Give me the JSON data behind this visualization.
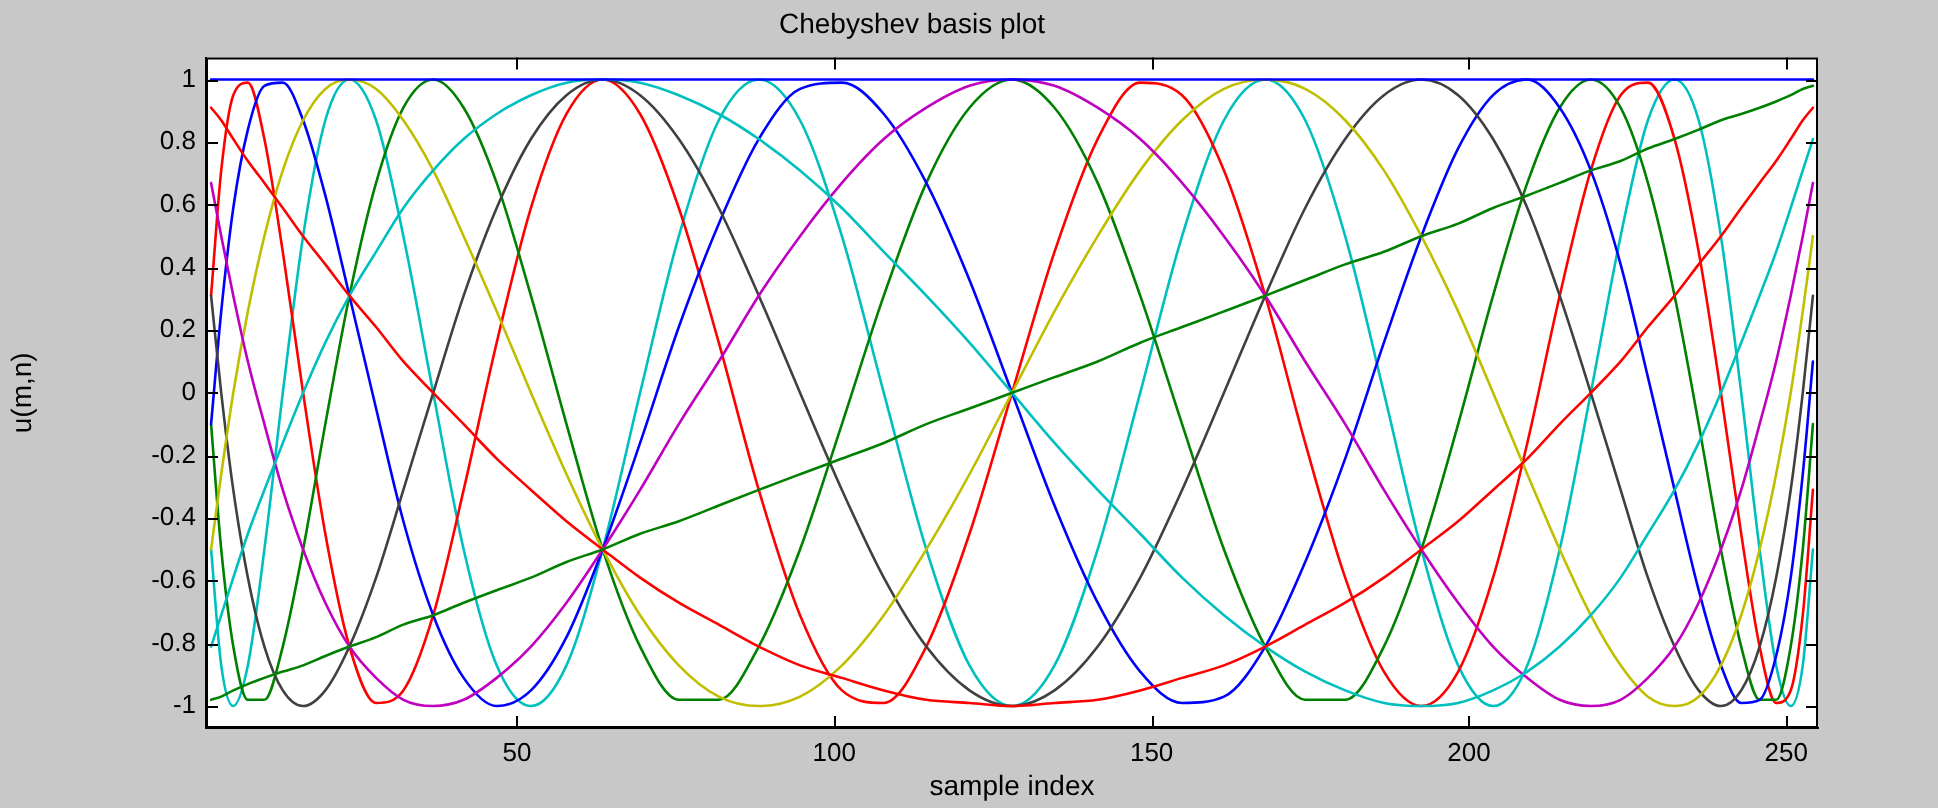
{
  "chart_data": {
    "type": "line",
    "title": "Chebyshev basis plot",
    "xlabel": "sample index",
    "ylabel": "u(m,n)",
    "xlim": [
      1,
      255
    ],
    "xticks": [
      50,
      100,
      150,
      200,
      250
    ],
    "ylim": [
      -1.07,
      1.07
    ],
    "yticks": [
      -1,
      -0.8,
      -0.6,
      -0.4,
      -0.2,
      0,
      0.2,
      0.4,
      0.6,
      0.8,
      1
    ],
    "grid": false,
    "legend": false,
    "marker": "none",
    "line_style": "solid",
    "x": [
      1.8,
      3.4,
      5.3,
      7.6,
      10.2,
      13.1,
      16.3,
      19.8,
      23.6,
      27.8,
      32.1,
      36.8,
      41.6,
      46.8,
      52.2,
      57.8,
      63.5,
      69.4,
      75.5,
      81.8,
      88.1,
      94.6,
      101.2,
      107.8,
      114.5,
      121.3,
      128,
      134.7,
      141.5,
      148.2,
      154.8,
      161.4,
      167.9,
      174.2,
      180.5,
      186.6,
      192.5,
      198.3,
      203.8,
      209.2,
      214.3,
      219.2,
      223.9,
      228.2,
      232.4,
      236.2,
      239.7,
      242.9,
      245.8,
      248.4,
      250.7,
      252.6,
      254.2
    ],
    "series": [
      {
        "color": "#0000ff",
        "values": [
          1,
          1,
          1,
          1,
          1,
          1,
          1,
          1,
          1,
          1,
          1,
          1,
          1,
          1,
          1,
          1,
          1,
          1,
          1,
          1,
          1,
          1,
          1,
          1,
          1,
          1,
          1,
          1,
          1,
          1,
          1,
          1,
          1,
          1,
          1,
          1,
          1,
          1,
          1,
          1,
          1,
          1,
          1,
          1,
          1,
          1,
          1,
          1,
          1,
          1,
          1,
          1,
          1
        ]
      },
      {
        "color": "#008000",
        "values": [
          -0.98,
          -0.97,
          -0.95,
          -0.93,
          -0.91,
          -0.89,
          -0.87,
          -0.84,
          -0.81,
          -0.78,
          -0.74,
          -0.71,
          -0.67,
          -0.63,
          -0.59,
          -0.54,
          -0.5,
          -0.45,
          -0.41,
          -0.36,
          -0.31,
          -0.26,
          -0.21,
          -0.16,
          -0.1,
          -0.05,
          0,
          0.05,
          0.1,
          0.16,
          0.21,
          0.26,
          0.31,
          0.36,
          0.41,
          0.45,
          0.5,
          0.54,
          0.59,
          0.63,
          0.67,
          0.71,
          0.74,
          0.78,
          0.81,
          0.84,
          0.87,
          0.89,
          0.91,
          0.93,
          0.95,
          0.97,
          0.98
        ]
      },
      {
        "color": "#ff0000",
        "values": [
          0.91,
          0.87,
          0.81,
          0.74,
          0.67,
          0.59,
          0.5,
          0.41,
          0.31,
          0.21,
          0.1,
          0,
          -0.1,
          -0.21,
          -0.31,
          -0.41,
          -0.5,
          -0.59,
          -0.67,
          -0.74,
          -0.81,
          -0.87,
          -0.91,
          -0.95,
          -0.98,
          -0.99,
          -1,
          -0.99,
          -0.98,
          -0.95,
          -0.91,
          -0.87,
          -0.81,
          -0.74,
          -0.67,
          -0.59,
          -0.5,
          -0.41,
          -0.31,
          -0.21,
          -0.1,
          0,
          0.1,
          0.21,
          0.31,
          0.41,
          0.5,
          0.59,
          0.67,
          0.74,
          0.81,
          0.87,
          0.91
        ]
      },
      {
        "color": "#00bfbf",
        "values": [
          -0.81,
          -0.71,
          -0.59,
          -0.45,
          -0.31,
          -0.16,
          0,
          0.16,
          0.31,
          0.45,
          0.59,
          0.71,
          0.81,
          0.89,
          0.95,
          0.99,
          1,
          0.99,
          0.95,
          0.89,
          0.81,
          0.71,
          0.59,
          0.45,
          0.31,
          0.16,
          0,
          -0.16,
          -0.31,
          -0.45,
          -0.59,
          -0.71,
          -0.81,
          -0.89,
          -0.95,
          -0.99,
          -1,
          -0.99,
          -0.95,
          -0.89,
          -0.81,
          -0.71,
          -0.59,
          -0.45,
          -0.31,
          -0.16,
          0,
          0.16,
          0.31,
          0.45,
          0.59,
          0.71,
          0.81
        ]
      },
      {
        "color": "#bf00bf",
        "values": [
          0.67,
          0.5,
          0.31,
          0.1,
          -0.1,
          -0.31,
          -0.5,
          -0.67,
          -0.81,
          -0.91,
          -0.98,
          -1,
          -0.98,
          -0.91,
          -0.81,
          -0.67,
          -0.5,
          -0.31,
          -0.1,
          0.1,
          0.31,
          0.5,
          0.67,
          0.81,
          0.91,
          0.98,
          1,
          0.98,
          0.91,
          0.81,
          0.67,
          0.5,
          0.31,
          0.1,
          -0.1,
          -0.31,
          -0.5,
          -0.67,
          -0.81,
          -0.91,
          -0.98,
          -1,
          -0.98,
          -0.91,
          -0.81,
          -0.67,
          -0.5,
          -0.31,
          -0.1,
          0.1,
          0.31,
          0.5,
          0.67
        ]
      },
      {
        "color": "#bfbf00",
        "values": [
          -0.5,
          -0.26,
          0,
          0.26,
          0.5,
          0.71,
          0.87,
          0.97,
          1,
          0.97,
          0.87,
          0.71,
          0.5,
          0.26,
          0,
          -0.26,
          -0.5,
          -0.71,
          -0.87,
          -0.97,
          -1,
          -0.97,
          -0.87,
          -0.71,
          -0.5,
          -0.26,
          0,
          0.26,
          0.5,
          0.71,
          0.87,
          0.97,
          1,
          0.97,
          0.87,
          0.71,
          0.5,
          0.26,
          0,
          -0.26,
          -0.5,
          -0.71,
          -0.87,
          -0.97,
          -1,
          -0.97,
          -0.87,
          -0.71,
          -0.5,
          -0.26,
          0,
          0.26,
          0.5
        ]
      },
      {
        "color": "#404040",
        "values": [
          0.31,
          0,
          -0.31,
          -0.59,
          -0.81,
          -0.95,
          -1,
          -0.95,
          -0.81,
          -0.59,
          -0.31,
          0,
          0.31,
          0.59,
          0.81,
          0.95,
          1,
          0.95,
          0.81,
          0.59,
          0.31,
          0,
          -0.31,
          -0.59,
          -0.81,
          -0.95,
          -1,
          -0.95,
          -0.81,
          -0.59,
          -0.31,
          0,
          0.31,
          0.59,
          0.81,
          0.95,
          1,
          0.95,
          0.81,
          0.59,
          0.31,
          0,
          -0.31,
          -0.59,
          -0.81,
          -0.95,
          -1,
          -0.95,
          -0.81,
          -0.59,
          -0.31,
          0,
          0.31
        ]
      },
      {
        "color": "#0000ff",
        "values": [
          -0.1,
          0.26,
          0.59,
          0.84,
          0.98,
          0.99,
          0.87,
          0.63,
          0.31,
          -0.05,
          -0.41,
          -0.71,
          -0.91,
          -1,
          -0.95,
          -0.78,
          -0.5,
          -0.16,
          0.21,
          0.54,
          0.81,
          0.97,
          0.99,
          0.89,
          0.67,
          0.36,
          0,
          -0.36,
          -0.67,
          -0.89,
          -0.99,
          -0.97,
          -0.81,
          -0.54,
          -0.21,
          0.16,
          0.5,
          0.78,
          0.95,
          1,
          0.91,
          0.71,
          0.41,
          0.05,
          -0.31,
          -0.63,
          -0.87,
          -0.99,
          -0.98,
          -0.84,
          -0.59,
          -0.26,
          0.1
        ]
      },
      {
        "color": "#008000",
        "values": [
          -0.1,
          -0.5,
          -0.81,
          -0.98,
          -0.98,
          -0.81,
          -0.5,
          -0.1,
          0.31,
          0.67,
          0.91,
          1,
          0.91,
          0.67,
          0.31,
          -0.1,
          -0.5,
          -0.81,
          -0.98,
          -0.98,
          -0.81,
          -0.5,
          -0.1,
          0.31,
          0.67,
          0.91,
          1,
          0.91,
          0.67,
          0.31,
          -0.1,
          -0.5,
          -0.81,
          -0.98,
          -0.98,
          -0.81,
          -0.5,
          -0.1,
          0.31,
          0.67,
          0.91,
          1,
          0.91,
          0.67,
          0.31,
          -0.1,
          -0.5,
          -0.81,
          -0.98,
          -0.98,
          -0.81,
          -0.5,
          -0.1
        ]
      },
      {
        "color": "#ff0000",
        "values": [
          0.31,
          0.71,
          0.95,
          0.99,
          0.81,
          0.45,
          0,
          -0.45,
          -0.81,
          -0.99,
          -0.95,
          -0.71,
          -0.31,
          0.16,
          0.59,
          0.89,
          1,
          0.89,
          0.59,
          0.16,
          -0.31,
          -0.71,
          -0.95,
          -0.99,
          -0.81,
          -0.45,
          0,
          0.45,
          0.81,
          0.99,
          0.95,
          0.71,
          0.31,
          -0.16,
          -0.59,
          -0.89,
          -1,
          -0.89,
          -0.59,
          -0.16,
          0.31,
          0.71,
          0.95,
          0.99,
          0.81,
          0.45,
          0,
          -0.45,
          -0.81,
          -0.99,
          -0.95,
          -0.71,
          -0.31
        ]
      },
      {
        "color": "#00bfbf",
        "values": [
          -0.5,
          -0.87,
          -1,
          -0.87,
          -0.5,
          0,
          0.5,
          0.87,
          1,
          0.87,
          0.5,
          0,
          -0.5,
          -0.87,
          -1,
          -0.87,
          -0.5,
          0,
          0.5,
          0.87,
          1,
          0.87,
          0.5,
          0,
          -0.5,
          -0.87,
          -1,
          -0.87,
          -0.5,
          0,
          0.5,
          0.87,
          1,
          0.87,
          0.5,
          0,
          -0.5,
          -0.87,
          -1,
          -0.87,
          -0.5,
          0,
          0.5,
          0.87,
          1,
          0.87,
          0.5,
          0,
          -0.5,
          -0.87,
          -1,
          -0.87,
          -0.5
        ]
      }
    ]
  }
}
